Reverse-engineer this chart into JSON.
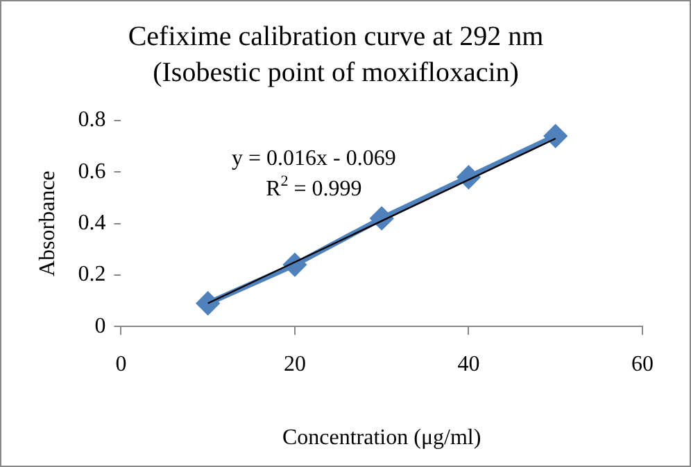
{
  "chart_data": {
    "type": "line",
    "title": "Cefixime calibration curve at 292 nm",
    "subtitle": "(Isobestic point of moxifloxacin)",
    "xlabel": "Concentration (μg/ml)",
    "ylabel": "Absorbance",
    "xlim": [
      0,
      60
    ],
    "xticks": [
      0,
      20,
      40,
      60
    ],
    "ylim": [
      0,
      0.8
    ],
    "yticks": [
      0,
      0.2,
      0.4,
      0.6,
      0.8
    ],
    "grid": false,
    "legend": false,
    "annotations": [
      "y = 0.016x - 0.069",
      "R$^{2}$ = 0.999"
    ],
    "series": [
      {
        "color": "#4f81bd",
        "marker": "diamond",
        "x": [
          10,
          20,
          30,
          40,
          50
        ],
        "values": [
          0.09,
          0.24,
          0.42,
          0.58,
          0.74
        ]
      },
      {
        "color": "#000000",
        "marker": "none",
        "x": [
          10,
          50
        ],
        "values": [
          0.09,
          0.73
        ]
      }
    ]
  }
}
